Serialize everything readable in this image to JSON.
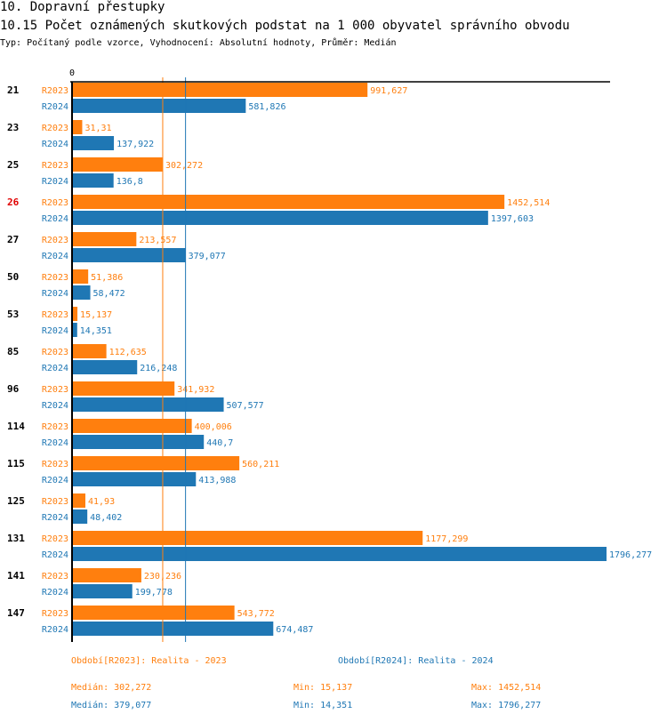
{
  "header": {
    "section": "10. Dopravní přestupky",
    "title": "10.15 Počet oznámených skutkových podstat na 1 000 obyvatel správního obvodu",
    "subtitle": "Typ: Počítaný podle vzorce, Vyhodnocení: Absolutní hodnoty, Průměr: Medián"
  },
  "colors": {
    "r2023": "#ff7f0e",
    "r2024": "#1f77b4",
    "highlight": "#e00000",
    "axis": "#000000"
  },
  "chart_data": {
    "type": "bar",
    "orientation": "horizontal",
    "title": "10.15 Počet oznámených skutkových podstat na 1 000 obyvatel správního obvodu",
    "xlabel": "",
    "ylabel": "",
    "x_tick_labels": [
      "0"
    ],
    "xlim": [
      0,
      1796.277
    ],
    "grid": false,
    "categories": [
      "21",
      "23",
      "25",
      "26",
      "27",
      "50",
      "53",
      "85",
      "96",
      "114",
      "115",
      "125",
      "131",
      "141",
      "147"
    ],
    "highlighted_category": "26",
    "series": [
      {
        "name": "R2023",
        "values": [
          991.627,
          31.31,
          302.272,
          1452.514,
          213.557,
          51.386,
          15.137,
          112.635,
          341.932,
          400.006,
          560.211,
          41.93,
          1177.299,
          230.236,
          543.772
        ],
        "labels": [
          "991,627",
          "31,31",
          "302,272",
          "1452,514",
          "213,557",
          "51,386",
          "15,137",
          "112,635",
          "341,932",
          "400,006",
          "560,211",
          "41,93",
          "1177,299",
          "230,236",
          "543,772"
        ],
        "median": 302.272
      },
      {
        "name": "R2024",
        "values": [
          581.826,
          137.922,
          136.8,
          1397.603,
          379.077,
          58.472,
          14.351,
          216.248,
          507.577,
          440.7,
          413.988,
          48.402,
          1796.277,
          199.778,
          674.487
        ],
        "labels": [
          "581,826",
          "137,922",
          "136,8",
          "1397,603",
          "379,077",
          "58,472",
          "14,351",
          "216,248",
          "507,577",
          "440,7",
          "413,988",
          "48,402",
          "1796,277",
          "199,778",
          "674,487"
        ],
        "median": 379.077
      }
    ],
    "legend": {
      "placement": "bottom",
      "items": [
        "Období[R2023]: Realita - 2023",
        "Období[R2024]: Realita - 2024"
      ]
    },
    "stats": {
      "r2023": {
        "median": "Medián: 302,272",
        "min": "Min: 15,137",
        "max": "Max: 1452,514"
      },
      "r2024": {
        "median": "Medián: 379,077",
        "min": "Min: 14,351",
        "max": "Max: 1796,277"
      }
    }
  }
}
